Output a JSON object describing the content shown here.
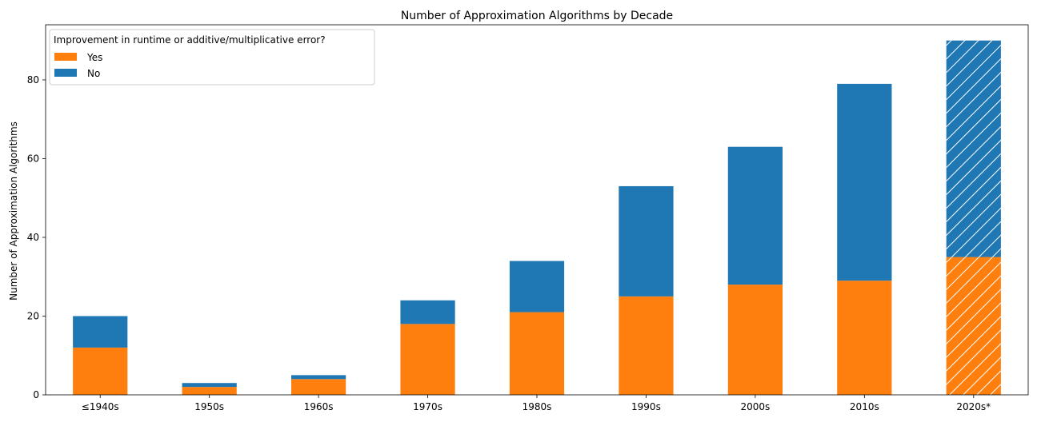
{
  "chart_data": {
    "type": "bar",
    "stacked": true,
    "title": "Number of Approximation Algorithms by Decade",
    "xlabel": "",
    "ylabel": "Number of Approximation Algorithms",
    "categories": [
      "≤1940s",
      "1950s",
      "1960s",
      "1970s",
      "1980s",
      "1990s",
      "2000s",
      "2010s",
      "2020s*"
    ],
    "ylim": [
      0,
      94
    ],
    "yticks": [
      0,
      20,
      40,
      60,
      80
    ],
    "series": [
      {
        "name": "Yes",
        "color": "#ff7f0e",
        "values": [
          12,
          2,
          4,
          18,
          21,
          25,
          28,
          29,
          35
        ]
      },
      {
        "name": "No",
        "color": "#1f77b4",
        "values": [
          8,
          1,
          1,
          6,
          13,
          28,
          35,
          50,
          55
        ]
      }
    ],
    "hatched_categories": [
      "2020s*"
    ],
    "legend": {
      "title": "Improvement in runtime or additive/multiplicative error?",
      "placement": "top-left"
    },
    "grid": false
  }
}
